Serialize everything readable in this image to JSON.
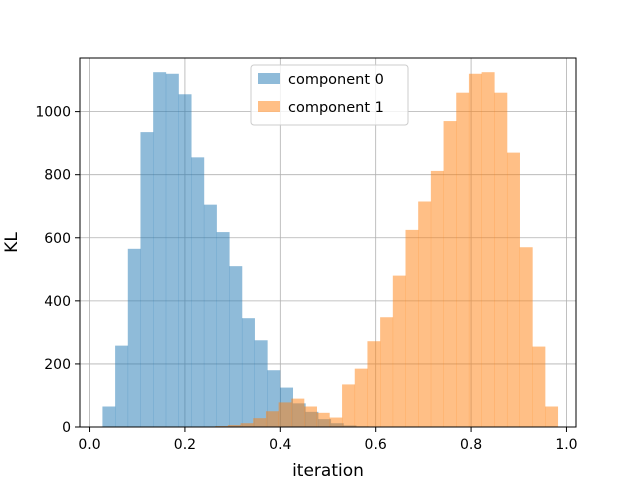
{
  "chart_data": {
    "type": "histogram",
    "xlabel": "iteration",
    "ylabel": "KL",
    "xlim": [
      -0.02,
      1.02
    ],
    "ylim": [
      0,
      1170
    ],
    "xticks": [
      0.0,
      0.2,
      0.4,
      0.6,
      0.8,
      1.0
    ],
    "xtick_labels": [
      "0.0",
      "0.2",
      "0.4",
      "0.6",
      "0.8",
      "1.0"
    ],
    "yticks": [
      0,
      200,
      400,
      600,
      800,
      1000
    ],
    "ytick_labels": [
      "0",
      "200",
      "400",
      "600",
      "800",
      "1000"
    ],
    "grid": true,
    "legend_position": "top-center",
    "series": [
      {
        "name": "component 0",
        "color": "#1f77b4",
        "opacity": 0.5,
        "bin_start": 0.027,
        "bin_width": 0.0266,
        "counts": [
          65,
          258,
          565,
          935,
          1125,
          1120,
          1055,
          855,
          705,
          618,
          510,
          345,
          275,
          180,
          125,
          75,
          48,
          25,
          12,
          5,
          2
        ]
      },
      {
        "name": "component 1",
        "color": "#ff7f0e",
        "opacity": 0.5,
        "bin_start": 0.2635,
        "bin_width": 0.0266,
        "counts": [
          3,
          6,
          12,
          28,
          50,
          78,
          90,
          65,
          45,
          30,
          135,
          185,
          272,
          348,
          480,
          625,
          715,
          812,
          970,
          1060,
          1120,
          1125,
          1060,
          870,
          570,
          255,
          65
        ]
      }
    ]
  }
}
